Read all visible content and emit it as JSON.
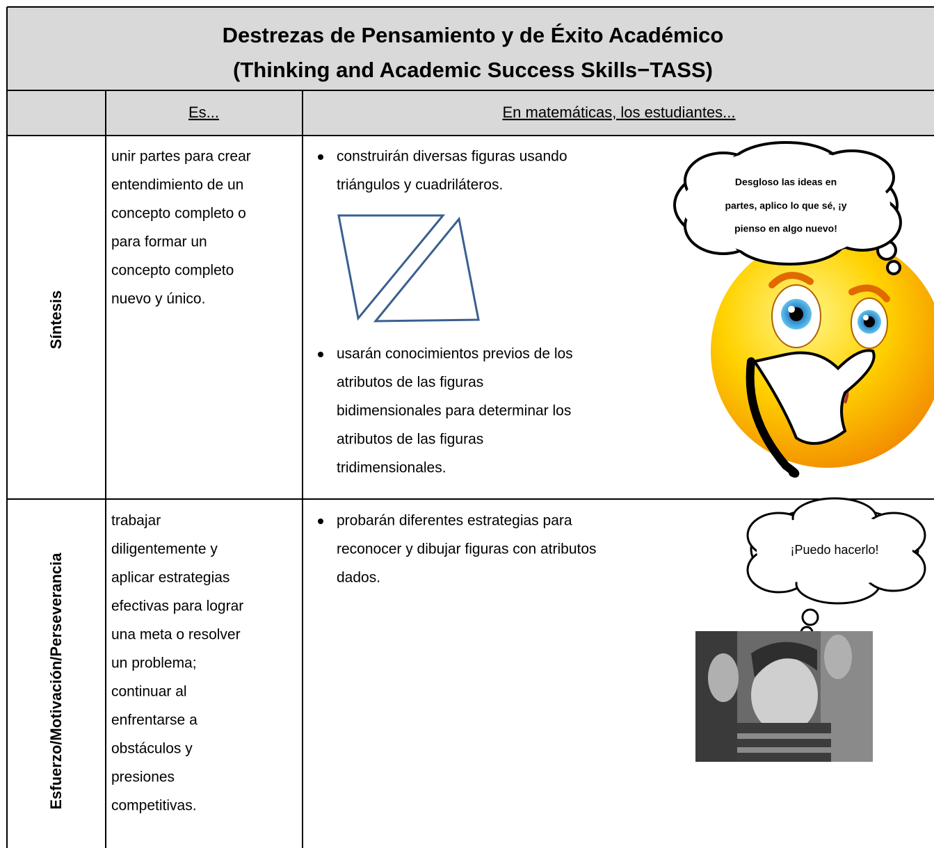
{
  "header": {
    "title": [
      "Destrezas de Pensamiento y de Éxito Académico",
      "(Thinking and Academic Success Skills−TASS)"
    ]
  },
  "table": {
    "columns": [
      "Es...",
      "En matemáticas, los estudiantes..."
    ],
    "rows": [
      {
        "skill": "Síntesis",
        "is": [
          "unir partes para crear",
          "entendimiento de un",
          "concepto completo o",
          "para formar un",
          "concepto completo",
          "nuevo y único."
        ],
        "bullets": [
          [
            "construirán diversas figuras usando",
            "triángulos y cuadriláteros."
          ],
          [
            "usarán conocimientos previos de los",
            "atributos de las figuras",
            "bidimensionales para determinar los",
            "atributos de las figuras",
            "tridimensionales."
          ]
        ],
        "callout": [
          "Desgloso las ideas en",
          "partes, aplico lo que sé, ¡y",
          "pienso en algo nuevo!"
        ]
      },
      {
        "skill": "Esfuerzo/Motivación/Perseverancia",
        "is": [
          "trabajar",
          "diligentemente y",
          "aplicar estrategias",
          "efectivas para lograr",
          "una meta o resolver",
          "un problema;",
          "continuar al",
          "enfrentarse a",
          "obstáculos y",
          "presiones",
          "competitivas."
        ],
        "bullets": [
          [
            "probarán diferentes estrategias para",
            "reconocer y dibujar figuras con atributos",
            "dados."
          ]
        ],
        "callout": [
          "¡Puedo hacerlo!"
        ]
      }
    ]
  }
}
